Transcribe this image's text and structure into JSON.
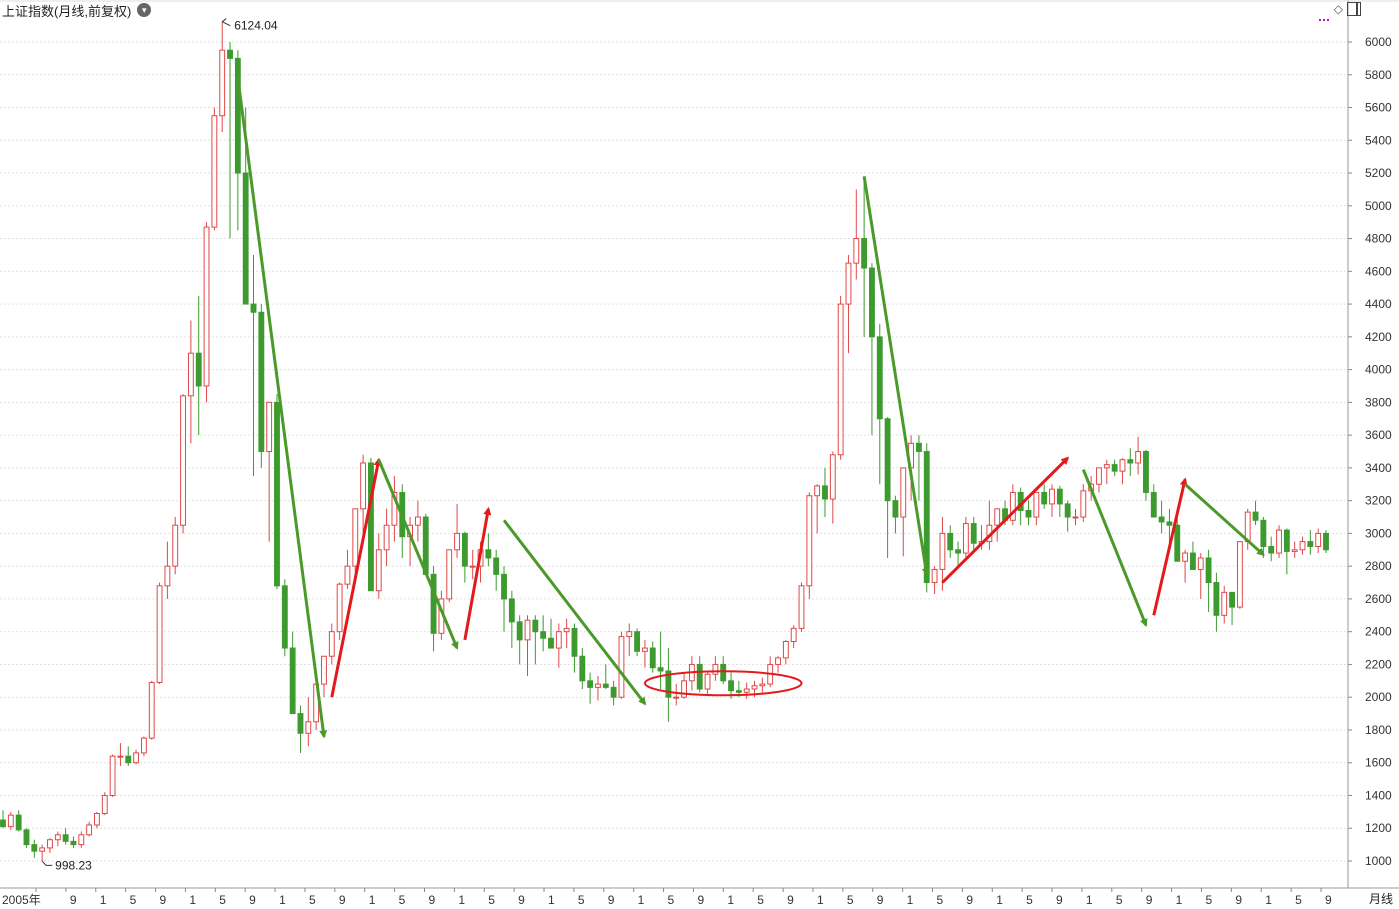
{
  "header": {
    "title": "上证指数(月线,前复权)",
    "dropdown_icon": "chevron-down-icon",
    "icons": [
      "diamond-icon",
      "window-icon"
    ]
  },
  "footer": {
    "period_label": "月线",
    "x_ticks": [
      "2005年",
      "9",
      "1",
      "5",
      "9",
      "1",
      "5",
      "9",
      "1",
      "5",
      "9",
      "1",
      "5",
      "9",
      "1",
      "5",
      "9",
      "1",
      "5",
      "9",
      "1",
      "5",
      "9",
      "1",
      "5",
      "9",
      "1",
      "5",
      "9",
      "1",
      "5",
      "9",
      "1",
      "5",
      "9",
      "1",
      "5",
      "9",
      "1",
      "5",
      "9",
      "1",
      "5",
      "9"
    ]
  },
  "chart_data": {
    "type": "candlestick",
    "title": "上证指数(月线,前复权)",
    "y_axis": {
      "side": "right",
      "ticks": [
        1000,
        1200,
        1400,
        1600,
        1800,
        2000,
        2200,
        2400,
        2600,
        2800,
        3000,
        3200,
        3400,
        3600,
        3800,
        4000,
        4200,
        4400,
        4600,
        4800,
        5000,
        5200,
        5400,
        5600,
        5800,
        6000
      ],
      "range": [
        900,
        6120
      ]
    },
    "grid": "horizontal-dashed",
    "colors": {
      "up": "#e04848",
      "down": "#3c9a2f",
      "arrow_up": "#e31a1c",
      "arrow_down": "#4a9a2a"
    },
    "annotations": {
      "max_label": "6124.04",
      "min_label": "998.23"
    },
    "ohlc": [
      [
        1250,
        1310,
        1200,
        1210
      ],
      [
        1210,
        1300,
        1190,
        1280
      ],
      [
        1280,
        1310,
        1180,
        1190
      ],
      [
        1190,
        1200,
        1080,
        1100
      ],
      [
        1100,
        1130,
        1020,
        1060
      ],
      [
        1060,
        1100,
        998,
        1080
      ],
      [
        1080,
        1140,
        1050,
        1130
      ],
      [
        1130,
        1180,
        1090,
        1160
      ],
      [
        1160,
        1200,
        1100,
        1120
      ],
      [
        1120,
        1150,
        1080,
        1100
      ],
      [
        1100,
        1180,
        1080,
        1160
      ],
      [
        1160,
        1240,
        1150,
        1220
      ],
      [
        1220,
        1300,
        1200,
        1290
      ],
      [
        1290,
        1420,
        1280,
        1400
      ],
      [
        1400,
        1650,
        1390,
        1640
      ],
      [
        1640,
        1720,
        1580,
        1640
      ],
      [
        1640,
        1700,
        1580,
        1600
      ],
      [
        1600,
        1680,
        1590,
        1660
      ],
      [
        1660,
        1760,
        1640,
        1750
      ],
      [
        1750,
        2100,
        1740,
        2090
      ],
      [
        2090,
        2700,
        2080,
        2680
      ],
      [
        2680,
        2950,
        2600,
        2800
      ],
      [
        2800,
        3100,
        2750,
        3050
      ],
      [
        3050,
        3850,
        3000,
        3840
      ],
      [
        3840,
        4300,
        3550,
        4100
      ],
      [
        4100,
        4450,
        3600,
        3900
      ],
      [
        3900,
        4900,
        3800,
        4870
      ],
      [
        4870,
        5600,
        4850,
        5550
      ],
      [
        5550,
        6124,
        5450,
        5950
      ],
      [
        5950,
        6000,
        4800,
        5900
      ],
      [
        5900,
        5950,
        4850,
        5200
      ],
      [
        5200,
        5600,
        4400,
        4400
      ],
      [
        4400,
        4700,
        3350,
        4350
      ],
      [
        4350,
        4400,
        3400,
        3500
      ],
      [
        3500,
        3800,
        2950,
        3800
      ],
      [
        3800,
        3850,
        2660,
        2680
      ],
      [
        2680,
        2720,
        2250,
        2300
      ],
      [
        2300,
        2400,
        1900,
        1900
      ],
      [
        1900,
        1950,
        1660,
        1780
      ],
      [
        1780,
        2000,
        1700,
        1850
      ],
      [
        1850,
        2100,
        1800,
        2080
      ],
      [
        2080,
        2250,
        2000,
        2250
      ],
      [
        2250,
        2450,
        2200,
        2400
      ],
      [
        2400,
        2700,
        2350,
        2690
      ],
      [
        2690,
        2900,
        2660,
        2800
      ],
      [
        2800,
        3150,
        2700,
        3150
      ],
      [
        3150,
        3480,
        3000,
        3430
      ],
      [
        3430,
        3460,
        2650,
        2650
      ],
      [
        2650,
        3000,
        2600,
        2900
      ],
      [
        2900,
        3150,
        2800,
        3050
      ],
      [
        3050,
        3350,
        2950,
        3250
      ],
      [
        3250,
        3300,
        2850,
        2980
      ],
      [
        2980,
        3100,
        2800,
        3050
      ],
      [
        3050,
        3200,
        2950,
        3100
      ],
      [
        3100,
        3120,
        2760,
        2750
      ],
      [
        2750,
        2800,
        2280,
        2390
      ],
      [
        2390,
        2650,
        2350,
        2600
      ],
      [
        2600,
        2900,
        2580,
        2900
      ],
      [
        2900,
        3180,
        2850,
        3000
      ],
      [
        3000,
        3010,
        2700,
        2800
      ],
      [
        2800,
        2900,
        2720,
        2800
      ],
      [
        2800,
        2950,
        2700,
        2900
      ],
      [
        2900,
        3000,
        2800,
        2850
      ],
      [
        2850,
        2900,
        2650,
        2750
      ],
      [
        2750,
        2800,
        2400,
        2600
      ],
      [
        2600,
        2650,
        2300,
        2460
      ],
      [
        2460,
        2500,
        2200,
        2350
      ],
      [
        2350,
        2500,
        2130,
        2470
      ],
      [
        2470,
        2500,
        2200,
        2400
      ],
      [
        2400,
        2500,
        2280,
        2360
      ],
      [
        2360,
        2480,
        2300,
        2300
      ],
      [
        2300,
        2450,
        2180,
        2400
      ],
      [
        2400,
        2480,
        2300,
        2420
      ],
      [
        2420,
        2450,
        2150,
        2250
      ],
      [
        2250,
        2300,
        2050,
        2100
      ],
      [
        2100,
        2150,
        1960,
        2060
      ],
      [
        2060,
        2130,
        1980,
        2080
      ],
      [
        2080,
        2200,
        2050,
        2060
      ],
      [
        2060,
        2100,
        1950,
        2000
      ],
      [
        2000,
        2400,
        1990,
        2370
      ],
      [
        2370,
        2450,
        2250,
        2400
      ],
      [
        2400,
        2420,
        2250,
        2280
      ],
      [
        2280,
        2350,
        2180,
        2300
      ],
      [
        2300,
        2340,
        2150,
        2180
      ],
      [
        2180,
        2400,
        2050,
        2160
      ],
      [
        2160,
        2300,
        1850,
        2000
      ],
      [
        2000,
        2080,
        1950,
        2000
      ],
      [
        2000,
        2150,
        1990,
        2100
      ],
      [
        2100,
        2250,
        2040,
        2200
      ],
      [
        2200,
        2250,
        2030,
        2050
      ],
      [
        2050,
        2150,
        2020,
        2140
      ],
      [
        2140,
        2250,
        2100,
        2200
      ],
      [
        2200,
        2250,
        2080,
        2100
      ],
      [
        2100,
        2150,
        1990,
        2040
      ],
      [
        2040,
        2100,
        2000,
        2030
      ],
      [
        2030,
        2090,
        1990,
        2050
      ],
      [
        2050,
        2100,
        2000,
        2070
      ],
      [
        2070,
        2120,
        2020,
        2080
      ],
      [
        2080,
        2250,
        2060,
        2200
      ],
      [
        2200,
        2250,
        2150,
        2240
      ],
      [
        2240,
        2350,
        2200,
        2340
      ],
      [
        2340,
        2440,
        2300,
        2420
      ],
      [
        2420,
        2700,
        2400,
        2680
      ],
      [
        2680,
        3250,
        2600,
        3230
      ],
      [
        3230,
        3300,
        3000,
        3290
      ],
      [
        3290,
        3400,
        3100,
        3210
      ],
      [
        3210,
        3500,
        3060,
        3480
      ],
      [
        3480,
        4450,
        3450,
        4400
      ],
      [
        4400,
        4700,
        4100,
        4650
      ],
      [
        4650,
        5100,
        4550,
        4800
      ],
      [
        4800,
        5178,
        4200,
        4620
      ],
      [
        4620,
        4650,
        3600,
        4200
      ],
      [
        4200,
        4280,
        3300,
        3700
      ],
      [
        3700,
        3710,
        2850,
        3200
      ],
      [
        3200,
        3230,
        3000,
        3100
      ],
      [
        3100,
        3400,
        2860,
        3400
      ],
      [
        3400,
        3600,
        3200,
        3550
      ],
      [
        3550,
        3600,
        3200,
        3500
      ],
      [
        3500,
        3550,
        2640,
        2700
      ],
      [
        2700,
        2800,
        2630,
        2780
      ],
      [
        2780,
        3100,
        2650,
        3000
      ],
      [
        3000,
        3050,
        2850,
        2900
      ],
      [
        2900,
        2950,
        2800,
        2880
      ],
      [
        2880,
        3100,
        2850,
        3060
      ],
      [
        3060,
        3100,
        2900,
        2940
      ],
      [
        2940,
        3050,
        2900,
        2950
      ],
      [
        2950,
        3200,
        2900,
        3050
      ],
      [
        3050,
        3150,
        2950,
        3150
      ],
      [
        3150,
        3200,
        3050,
        3080
      ],
      [
        3080,
        3300,
        3050,
        3250
      ],
      [
        3250,
        3280,
        3050,
        3140
      ],
      [
        3140,
        3200,
        3050,
        3100
      ],
      [
        3100,
        3250,
        3050,
        3250
      ],
      [
        3250,
        3300,
        3150,
        3180
      ],
      [
        3180,
        3300,
        3100,
        3270
      ],
      [
        3270,
        3290,
        3100,
        3180
      ],
      [
        3180,
        3200,
        3010,
        3100
      ],
      [
        3100,
        3150,
        3050,
        3100
      ],
      [
        3100,
        3300,
        3070,
        3260
      ],
      [
        3260,
        3350,
        3200,
        3300
      ],
      [
        3300,
        3400,
        3250,
        3400
      ],
      [
        3400,
        3450,
        3300,
        3420
      ],
      [
        3420,
        3450,
        3350,
        3380
      ],
      [
        3380,
        3460,
        3300,
        3450
      ],
      [
        3450,
        3520,
        3350,
        3430
      ],
      [
        3430,
        3590,
        3360,
        3500
      ],
      [
        3500,
        3510,
        3200,
        3250
      ],
      [
        3250,
        3300,
        3150,
        3100
      ],
      [
        3100,
        3200,
        3000,
        3070
      ],
      [
        3070,
        3150,
        2900,
        3050
      ],
      [
        3050,
        3100,
        2850,
        2830
      ],
      [
        2830,
        2900,
        2700,
        2880
      ],
      [
        2880,
        2950,
        2820,
        2780
      ],
      [
        2780,
        2880,
        2600,
        2850
      ],
      [
        2850,
        2900,
        2520,
        2700
      ],
      [
        2700,
        2760,
        2400,
        2500
      ],
      [
        2500,
        2680,
        2450,
        2640
      ],
      [
        2640,
        2600,
        2440,
        2550
      ],
      [
        2550,
        2950,
        2540,
        2950
      ],
      [
        2950,
        3150,
        2900,
        3130
      ],
      [
        3130,
        3200,
        3050,
        3080
      ],
      [
        3080,
        3100,
        2850,
        2920
      ],
      [
        2920,
        2980,
        2830,
        2880
      ],
      [
        2880,
        3050,
        2850,
        3020
      ],
      [
        3020,
        3030,
        2750,
        2890
      ],
      [
        2890,
        2950,
        2850,
        2900
      ],
      [
        2900,
        2980,
        2870,
        2950
      ],
      [
        2950,
        3020,
        2870,
        2920
      ],
      [
        2920,
        3030,
        2880,
        3000
      ],
      [
        3000,
        3020,
        2880,
        2900
      ]
    ]
  }
}
